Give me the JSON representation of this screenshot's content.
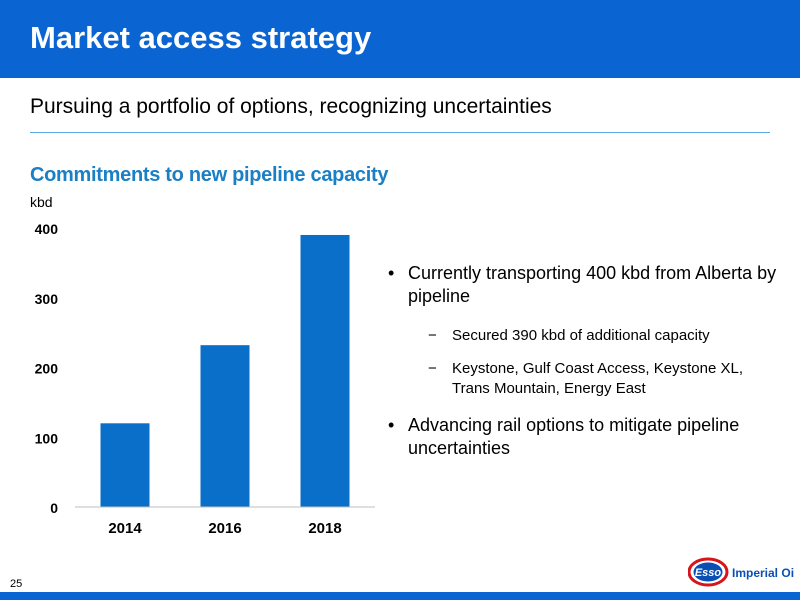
{
  "slide": {
    "title": "Market access strategy",
    "subtitle": "Pursuing a portfolio of options, recognizing uncertainties",
    "page_number": "25",
    "brand_color": "#0a64d2",
    "accent_color": "#1a7fc4"
  },
  "bullets": [
    {
      "text": "Currently transporting 400 kbd from Alberta by pipeline",
      "subs": [
        "Secured 390 kbd of additional capacity",
        "Keystone, Gulf Coast Access, Keystone XL, Trans Mountain, Energy East"
      ]
    },
    {
      "text": "Advancing rail options to mitigate pipeline uncertainties",
      "subs": []
    }
  ],
  "bullet_marks": {
    "main": "•",
    "sub": "−"
  },
  "logo": {
    "badge_text": "Esso",
    "company_text": "Imperial Oil",
    "badge_color": "#0a4fb4",
    "ring_color": "#d7141a"
  },
  "chart_data": {
    "type": "bar",
    "title": "Commitments to new pipeline capacity",
    "ylabel": "kbd",
    "xlabel": "",
    "categories": [
      "2014",
      "2016",
      "2018"
    ],
    "values": [
      120,
      232,
      390
    ],
    "ylim": [
      0,
      400
    ],
    "yticks": [
      0,
      100,
      200,
      300,
      400
    ],
    "bar_color": "#0a6fc8",
    "grid": false,
    "legend": "none"
  }
}
